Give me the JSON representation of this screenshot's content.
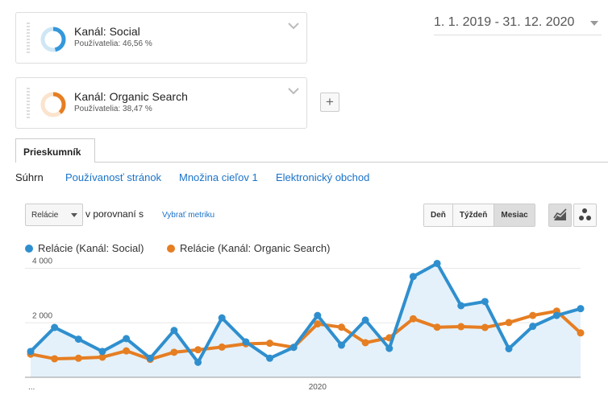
{
  "segments": [
    {
      "title": "Kanál: Social",
      "subtitle": "Používatelia: 46,56 %",
      "percent": 46.56,
      "color": "#3498db"
    },
    {
      "title": "Kanál: Organic Search",
      "subtitle": "Používatelia: 38,47 %",
      "percent": 38.47,
      "color": "#e67e22"
    }
  ],
  "add_segment": "+",
  "date_range": "1. 1. 2019 - 31. 12. 2020",
  "tabs": {
    "explorer": "Prieskumník"
  },
  "subnav": {
    "summary": "Súhrn",
    "site_usage": "Používanosť stránok",
    "goal_set": "Množina cieľov 1",
    "ecommerce": "Elektronický obchod"
  },
  "metric": {
    "selected": "Relácie",
    "vs_text": "v porovnaní s",
    "select_metric": "Vybrať metriku"
  },
  "period": {
    "day": "Deň",
    "week": "Týždeň",
    "month": "Mesiac",
    "selected": "Mesiac"
  },
  "colors": {
    "social": "#2f8fce",
    "organic": "#e67e22",
    "link": "#1a73c8"
  },
  "icons": {
    "line_chart": "line-chart-icon",
    "motion_chart": "motion-chart-icon",
    "dropdown": "chevron-down-icon",
    "caret": "caret-down-icon"
  },
  "chart_data": {
    "type": "line",
    "x": [
      "2019-01",
      "2019-02",
      "2019-03",
      "2019-04",
      "2019-05",
      "2019-06",
      "2019-07",
      "2019-08",
      "2019-09",
      "2019-10",
      "2019-11",
      "2019-12",
      "2020-01",
      "2020-02",
      "2020-03",
      "2020-04",
      "2020-05",
      "2020-06",
      "2020-07",
      "2020-08",
      "2020-09",
      "2020-10",
      "2020-11",
      "2020-12"
    ],
    "series": [
      {
        "name": "Relácie (Kanál: Social)",
        "values": [
          950,
          1830,
          1400,
          950,
          1420,
          700,
          1720,
          550,
          2180,
          1300,
          700,
          1100,
          2270,
          1180,
          2100,
          1060,
          3700,
          4180,
          2630,
          2780,
          1050,
          1870,
          2270,
          2520
        ]
      },
      {
        "name": "Relácie (Kanál: Organic Search)",
        "values": [
          850,
          680,
          700,
          740,
          970,
          660,
          920,
          1010,
          1110,
          1230,
          1250,
          1100,
          1960,
          1840,
          1270,
          1450,
          2150,
          1840,
          1860,
          1830,
          2010,
          2270,
          2430,
          1630
        ]
      }
    ],
    "ylim": [
      0,
      4400
    ],
    "yticks": [
      "4 000",
      "2 000"
    ],
    "ytick_values": [
      4000,
      2000
    ],
    "xtick_labels": [
      "...",
      "2020"
    ],
    "xtick_index": [
      0,
      12
    ],
    "area_fill": "Relácie (Kanál: Social)",
    "grid": true,
    "legend_position": "top-left"
  }
}
